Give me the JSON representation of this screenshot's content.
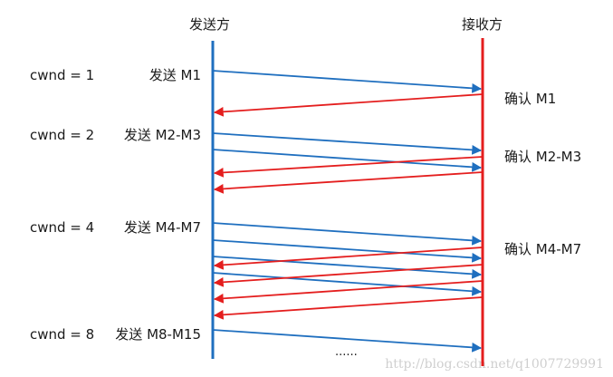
{
  "headers": {
    "sender": "发送方",
    "receiver": "接收方"
  },
  "cwnd_labels": [
    "cwnd = 1",
    "cwnd = 2",
    "cwnd = 4",
    "cwnd = 8"
  ],
  "send_labels": [
    "发送 M1",
    "发送 M2-M3",
    "发送 M4-M7",
    "发送 M8-M15"
  ],
  "ack_labels": [
    "确认 M1",
    "确认 M2-M3",
    "确认 M4-M7"
  ],
  "ellipsis": "......",
  "watermark": "http://blog.csdn.net/q1007729991",
  "colors": {
    "sender_line": "#1f6fbf",
    "receiver_line": "#e41e1e",
    "send_arrow": "#1f6fbf",
    "ack_arrow": "#e41e1e"
  }
}
